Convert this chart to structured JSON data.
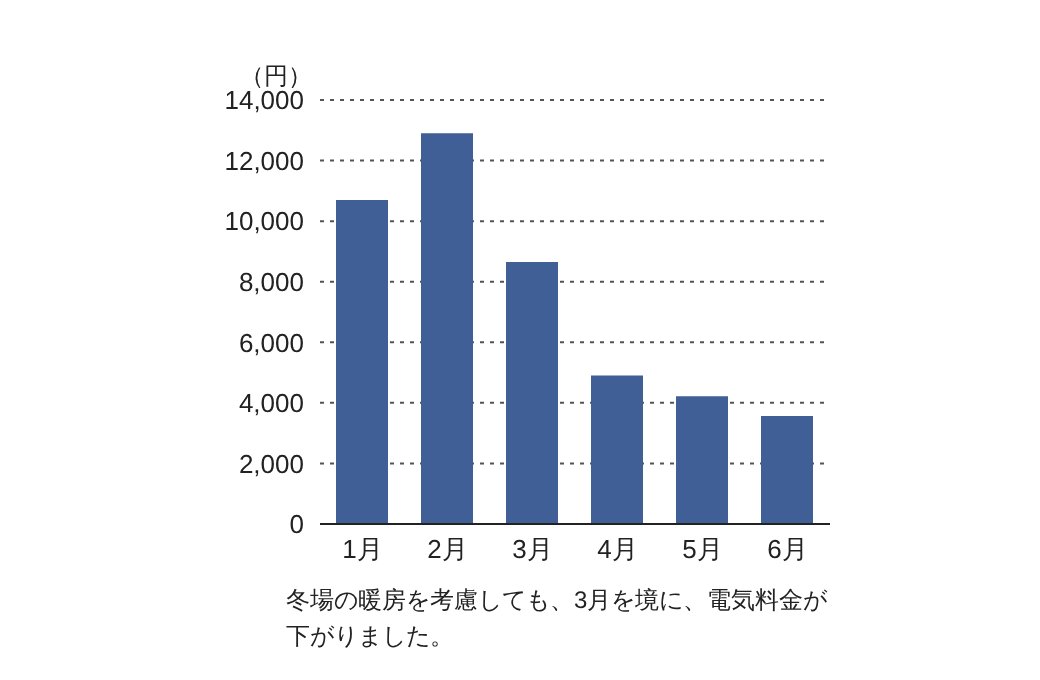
{
  "chart_data": {
    "type": "bar",
    "ylabel": "（円）",
    "categories": [
      "1月",
      "2月",
      "3月",
      "4月",
      "5月",
      "6月"
    ],
    "values": [
      10700,
      12900,
      8650,
      4900,
      4220,
      3570
    ],
    "color": "#3f5f96",
    "ylim": [
      0,
      14000
    ],
    "yticks": [
      {
        "value": 0,
        "label": "0"
      },
      {
        "value": 2000,
        "label": "2,000"
      },
      {
        "value": 4000,
        "label": "4,000"
      },
      {
        "value": 6000,
        "label": "6,000"
      },
      {
        "value": 8000,
        "label": "8,000"
      },
      {
        "value": 10000,
        "label": "10,000"
      },
      {
        "value": 12000,
        "label": "12,000"
      },
      {
        "value": 14000,
        "label": "14,000"
      }
    ],
    "grid": "y",
    "annotations": [
      "冬場の暖房を考慮しても、3月を境に、電気料金が下がりました。"
    ]
  }
}
